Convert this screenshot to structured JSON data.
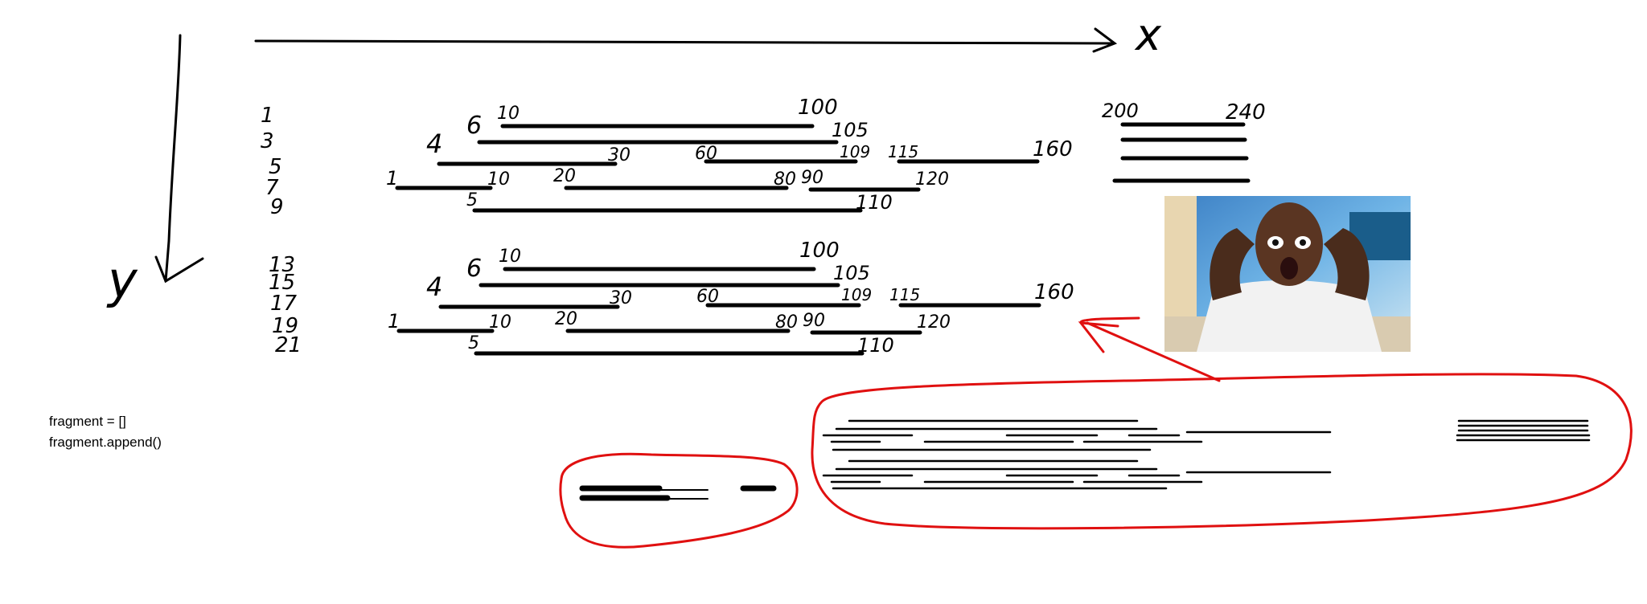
{
  "axes": {
    "x_label": "x",
    "y_label": "y"
  },
  "group_upper": {
    "row_labels": [
      "1",
      "3",
      "5",
      "7",
      "9"
    ],
    "side_labels": [
      "4",
      "6"
    ],
    "segment_labels": [
      "10",
      "100",
      "105",
      "30",
      "60",
      "109",
      "115",
      "160",
      "1",
      "10",
      "20",
      "80",
      "90",
      "120",
      "5",
      "110"
    ]
  },
  "group_lower": {
    "row_labels": [
      "13",
      "15",
      "17",
      "19",
      "21"
    ],
    "side_labels": [
      "4",
      "6"
    ],
    "segment_labels": [
      "10",
      "100",
      "105",
      "30",
      "60",
      "109",
      "115",
      "160",
      "1",
      "10",
      "20",
      "80",
      "90",
      "120",
      "5",
      "110"
    ]
  },
  "right_group": {
    "labels": [
      "200",
      "240"
    ]
  },
  "code_note": [
    "fragment = []",
    "fragment.append()"
  ],
  "colors": {
    "ink": "#000000",
    "highlight": "#e01010"
  },
  "photo": {
    "subject": "shocked-man-photo"
  }
}
